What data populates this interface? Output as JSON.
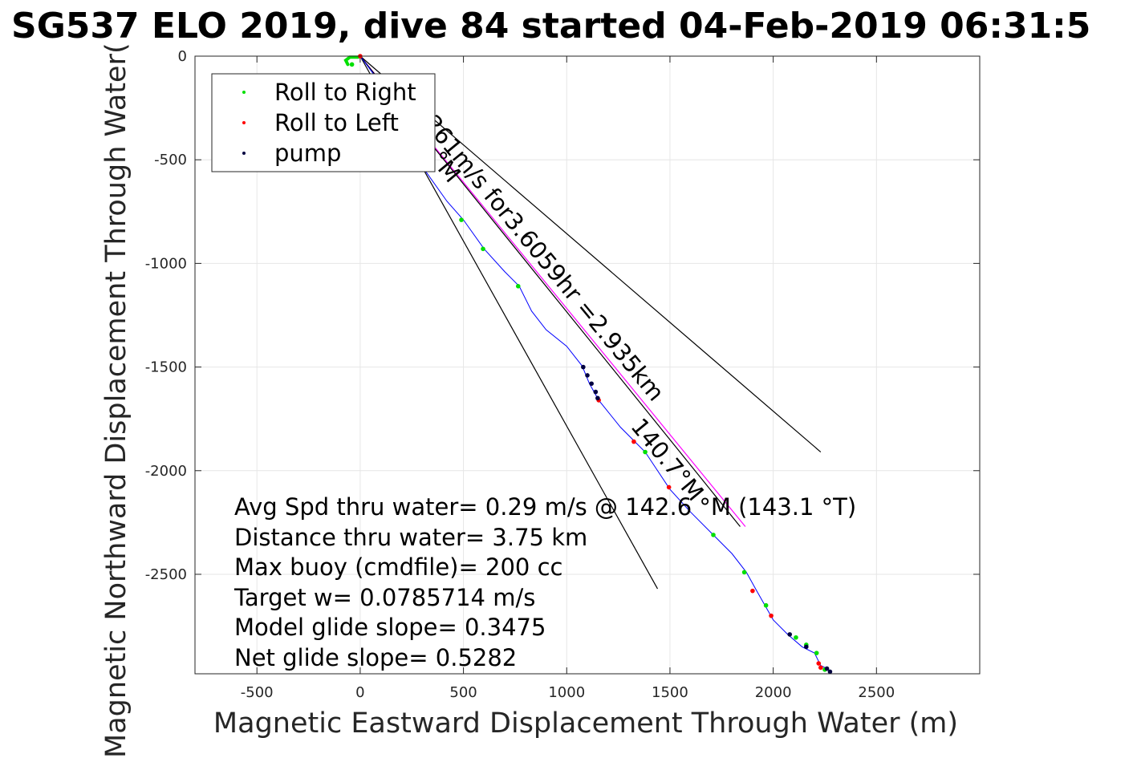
{
  "title": "SG537 ELO 2019, dive 84 started 04-Feb-2019 06:31:5",
  "xlabel": "Magnetic Eastward Displacement Through Water (m)",
  "ylabel": "Magnetic Northward Displacement Through Water(",
  "legend": [
    {
      "label": "Roll to Right",
      "color": "#00e000"
    },
    {
      "label": "Roll to Left",
      "color": "#ff0000"
    },
    {
      "label": "pump",
      "color": "#000040"
    }
  ],
  "annotations": [
    "Avg Spd thru water=  0.29 m/s @ 142.6 °M (143.1 °T)",
    "Distance thru water=  3.75 km",
    "Max buoy (cmdfile)= 200 cc",
    "Target w= 0.0785714 m/s",
    "Model glide slope= 0.3475",
    "Net glide slope= 0.5282"
  ],
  "rotated_labels": {
    "speed": "261m/s for3.6059hr =2.935km",
    "heading": "140.7°M",
    "heading_partial": "°M"
  },
  "chart_data": {
    "type": "line",
    "xlim": [
      -800,
      3000
    ],
    "ylim": [
      -2980,
      0
    ],
    "xticks": [
      -500,
      0,
      500,
      1000,
      1500,
      2000,
      2500
    ],
    "yticks": [
      0,
      -500,
      -1000,
      -1500,
      -2000,
      -2500
    ],
    "grid": true,
    "legend_position": "top-left",
    "track": {
      "color": "#0000ff",
      "points": [
        [
          0,
          0
        ],
        [
          60,
          -80
        ],
        [
          150,
          -220
        ],
        [
          260,
          -420
        ],
        [
          320,
          -560
        ],
        [
          420,
          -700
        ],
        [
          500,
          -790
        ],
        [
          600,
          -930
        ],
        [
          700,
          -1040
        ],
        [
          770,
          -1110
        ],
        [
          830,
          -1230
        ],
        [
          900,
          -1320
        ],
        [
          1000,
          -1400
        ],
        [
          1075,
          -1495
        ],
        [
          1110,
          -1580
        ],
        [
          1155,
          -1660
        ],
        [
          1260,
          -1790
        ],
        [
          1330,
          -1860
        ],
        [
          1380,
          -1910
        ],
        [
          1500,
          -2090
        ],
        [
          1600,
          -2200
        ],
        [
          1710,
          -2310
        ],
        [
          1800,
          -2400
        ],
        [
          1870,
          -2490
        ],
        [
          1920,
          -2580
        ],
        [
          1960,
          -2650
        ],
        [
          2000,
          -2720
        ],
        [
          2070,
          -2790
        ],
        [
          2140,
          -2850
        ],
        [
          2200,
          -2880
        ],
        [
          2230,
          -2940
        ],
        [
          2270,
          -2960
        ]
      ]
    },
    "start_hook": {
      "color": "#00e000",
      "points": [
        [
          -60,
          -40
        ],
        [
          -70,
          -20
        ],
        [
          -50,
          -5
        ],
        [
          -10,
          -5
        ],
        [
          0,
          0
        ]
      ]
    },
    "lines": [
      {
        "name": "mean-heading",
        "color": "#ff00ff",
        "points": [
          [
            0,
            0
          ],
          [
            1865,
            -2270
          ]
        ]
      },
      {
        "name": "envelope-left",
        "color": "#000000",
        "points": [
          [
            0,
            0
          ],
          [
            1440,
            -2570
          ]
        ]
      },
      {
        "name": "envelope-right",
        "color": "#000000",
        "points": [
          [
            0,
            0
          ],
          [
            2230,
            -1910
          ]
        ]
      },
      {
        "name": "black-parallel",
        "color": "#000000",
        "points": [
          [
            0,
            0
          ],
          [
            1840,
            -2270
          ]
        ]
      }
    ],
    "markers": {
      "roll_right": [
        [
          490,
          -790
        ],
        [
          595,
          -930
        ],
        [
          765,
          -1110
        ],
        [
          1380,
          -1910
        ],
        [
          1710,
          -2310
        ],
        [
          1860,
          -2490
        ],
        [
          1965,
          -2650
        ],
        [
          2110,
          -2805
        ],
        [
          2160,
          -2840
        ],
        [
          2210,
          -2880
        ],
        [
          2250,
          -2960
        ],
        [
          -40,
          -40
        ]
      ],
      "roll_left": [
        [
          1155,
          -1660
        ],
        [
          1325,
          -1860
        ],
        [
          1495,
          -2080
        ],
        [
          1900,
          -2580
        ],
        [
          1990,
          -2700
        ],
        [
          2220,
          -2930
        ],
        [
          2230,
          -2950
        ],
        [
          0,
          0
        ]
      ],
      "pump": [
        [
          1080,
          -1500
        ],
        [
          1100,
          -1540
        ],
        [
          1120,
          -1580
        ],
        [
          1140,
          -1620
        ],
        [
          1150,
          -1650
        ],
        [
          2080,
          -2790
        ],
        [
          2160,
          -2850
        ],
        [
          2260,
          -2955
        ],
        [
          2275,
          -2970
        ]
      ]
    }
  }
}
